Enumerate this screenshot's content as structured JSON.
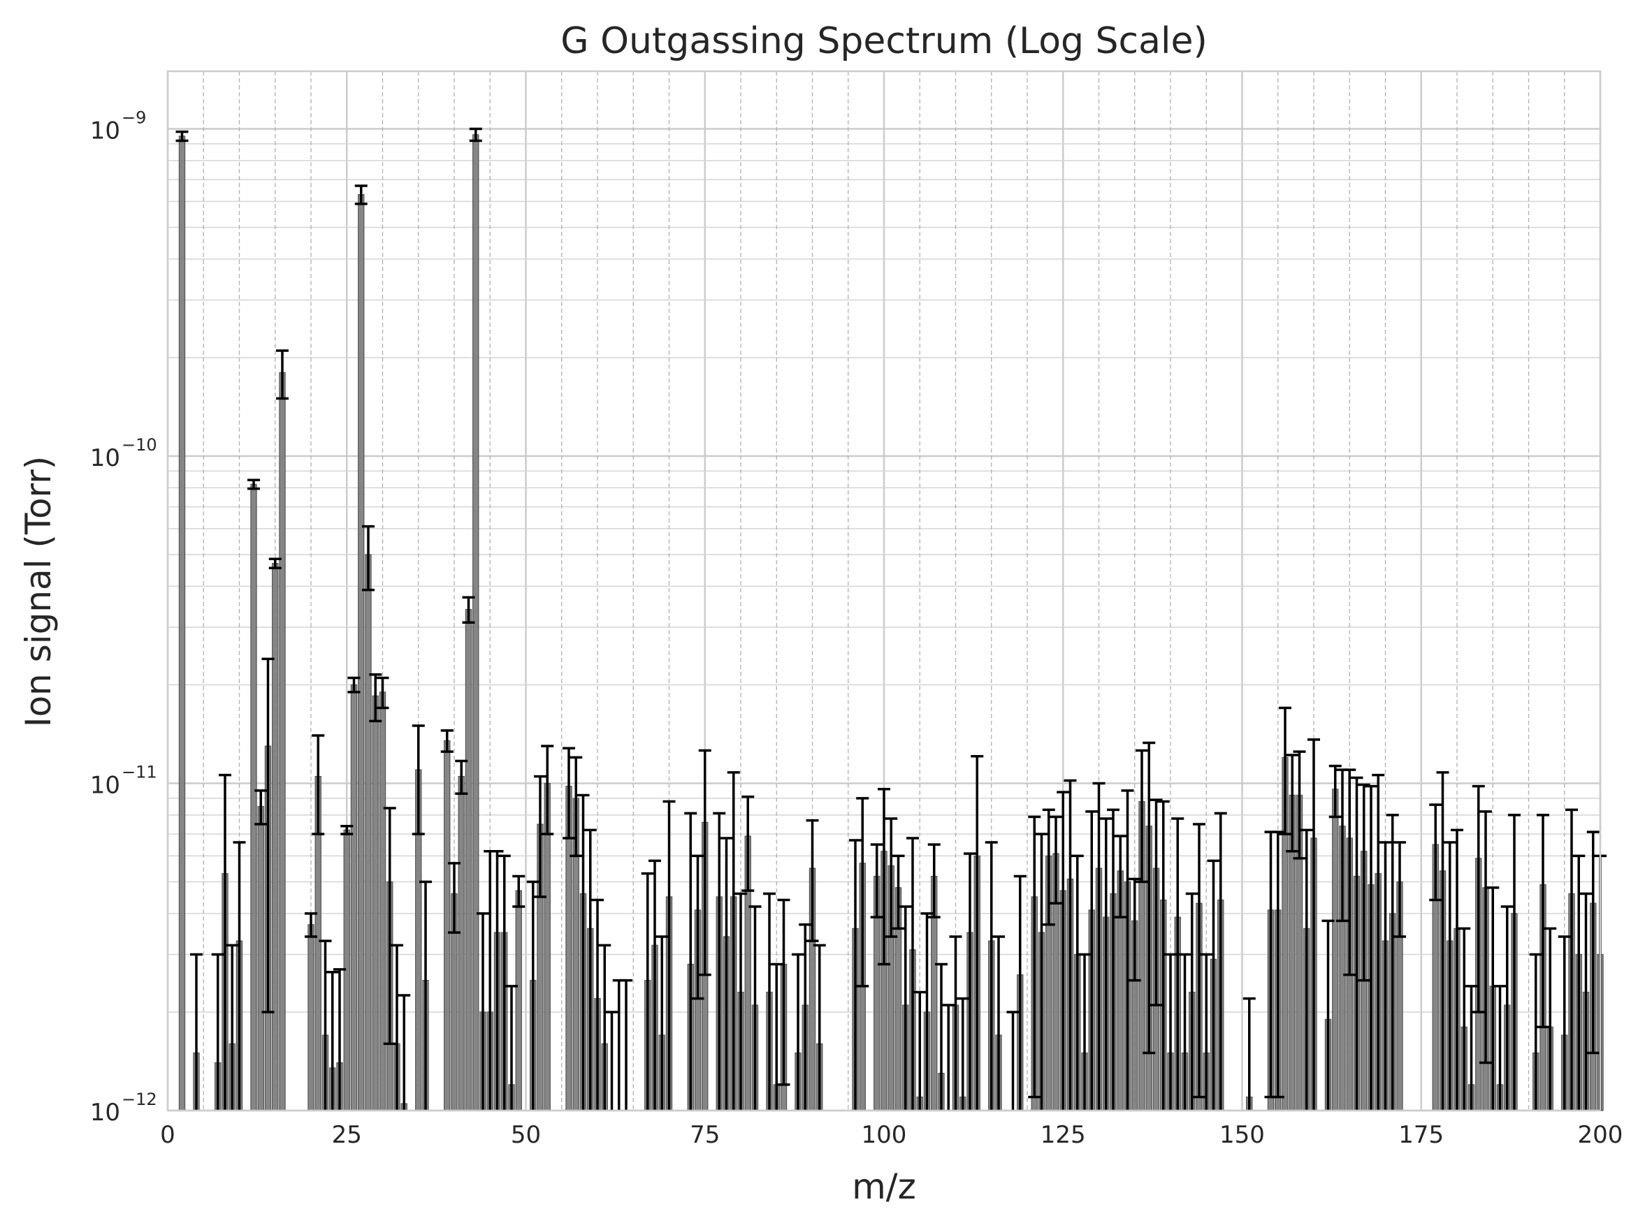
{
  "chart_data": {
    "type": "bar",
    "title": "G Outgassing Spectrum (Log Scale)",
    "xlabel": "m/z",
    "ylabel": "Ion signal (Torr)",
    "xlim": [
      0,
      200
    ],
    "ylim": [
      1e-12,
      1.5e-09
    ],
    "yscale": "log",
    "grid": true,
    "legend": "none",
    "bar_color": "#808080",
    "error_color": "#000000",
    "x_ticks": [
      "0",
      "25",
      "50",
      "75",
      "100",
      "125",
      "150",
      "175",
      "200"
    ],
    "y_ticks": [
      {
        "base": "10",
        "exp": "−12"
      },
      {
        "base": "10",
        "exp": "−11"
      },
      {
        "base": "10",
        "exp": "−10"
      },
      {
        "base": "10",
        "exp": "−9"
      }
    ],
    "x": [
      2,
      4,
      7,
      8,
      9,
      10,
      12,
      13,
      14,
      15,
      16,
      20,
      21,
      22,
      23,
      24,
      25,
      26,
      27,
      28,
      29,
      30,
      31,
      32,
      33,
      35,
      36,
      39,
      40,
      41,
      42,
      43,
      44,
      45,
      46,
      47,
      48,
      49,
      51,
      52,
      53,
      56,
      57,
      58,
      59,
      60,
      61,
      62,
      63,
      64,
      67,
      68,
      69,
      70,
      73,
      74,
      75,
      77,
      78,
      79,
      80,
      81,
      82,
      84,
      85,
      86,
      88,
      89,
      90,
      91,
      96,
      97,
      99,
      100,
      101,
      102,
      103,
      104,
      105,
      106,
      107,
      108,
      109,
      110,
      111,
      112,
      113,
      115,
      116,
      118,
      119,
      121,
      122,
      123,
      124,
      125,
      126,
      127,
      128,
      129,
      130,
      131,
      132,
      133,
      134,
      135,
      136,
      137,
      138,
      139,
      140,
      141,
      142,
      143,
      144,
      145,
      146,
      147,
      151,
      154,
      155,
      156,
      157,
      158,
      159,
      160,
      162,
      163,
      164,
      165,
      166,
      167,
      168,
      169,
      170,
      171,
      172,
      177,
      178,
      179,
      180,
      181,
      182,
      183,
      184,
      185,
      186,
      187,
      188,
      191,
      192,
      193,
      195,
      196,
      197,
      198,
      199,
      200
    ],
    "values": [
      9.5e-10,
      1.5e-12,
      1.4e-12,
      5.3e-12,
      1.6e-12,
      3.3e-12,
      8.2e-11,
      8.5e-12,
      1.3e-11,
      4.7e-11,
      1.8e-10,
      3.7e-12,
      1.05e-11,
      1.7e-12,
      1.35e-12,
      1.4e-12,
      7.2e-12,
      2e-11,
      6.3e-10,
      5e-11,
      1.85e-11,
      1.9e-11,
      5e-12,
      1.6e-12,
      1.05e-12,
      1.1e-11,
      2.5e-12,
      1.35e-11,
      4.6e-12,
      1.05e-11,
      3.4e-11,
      9.6e-10,
      2e-12,
      2e-12,
      3.5e-12,
      3.5e-12,
      1.2e-12,
      4.7e-12,
      2.5e-12,
      7.5e-12,
      1e-11,
      9.8e-12,
      9e-12,
      4.6e-12,
      3.6e-12,
      2.2e-12,
      1.6e-12,
      1e-12,
      1e-12,
      1e-12,
      2.5e-12,
      3.2e-12,
      1.7e-12,
      4.5e-12,
      2.8e-12,
      4.1e-12,
      7.6e-12,
      4.5e-12,
      3.4e-12,
      4.5e-12,
      2.3e-12,
      6.9e-12,
      2.1e-12,
      2.3e-12,
      1.2e-12,
      2.8e-12,
      1.5e-12,
      2.1e-12,
      5.5e-12,
      1.6e-12,
      3.6e-12,
      5.7e-12,
      5.2e-12,
      6.2e-12,
      5.6e-12,
      4.8e-12,
      2.1e-12,
      3.1e-12,
      1.1e-12,
      2e-12,
      5.2e-12,
      1.3e-12,
      1e-12,
      2.1e-12,
      1.1e-12,
      3.5e-12,
      6e-12,
      3.3e-12,
      1.7e-12,
      1e-12,
      2.6e-12,
      4.5e-12,
      3.5e-12,
      6e-12,
      6.1e-12,
      4.7e-12,
      5.1e-12,
      3e-12,
      1.5e-12,
      4.1e-12,
      5.5e-12,
      3.9e-12,
      4.6e-12,
      5.4e-12,
      5e-12,
      3.8e-12,
      8.8e-12,
      7.4e-12,
      5.5e-12,
      4.4e-12,
      1.5e-12,
      3.9e-12,
      1.5e-12,
      2.3e-12,
      4.3e-12,
      1.5e-12,
      2.9e-12,
      4.4e-12,
      1.1e-12,
      4.1e-12,
      4.1e-12,
      1.2e-11,
      9.2e-12,
      9.2e-12,
      3.6e-12,
      6.8e-12,
      1.9e-12,
      9.6e-12,
      7.4e-12,
      6.8e-12,
      5.2e-12,
      6.2e-12,
      4.9e-12,
      5.3e-12,
      3.3e-12,
      4e-12,
      5e-12,
      6.5e-12,
      5.4e-12,
      3.3e-12,
      3.6e-12,
      1.8e-12,
      1.2e-12,
      5.9e-12,
      4.8e-12,
      2.4e-12,
      1.2e-12,
      2.1e-12,
      4e-12,
      1.5e-12,
      4.9e-12,
      1.8e-12,
      1.7e-12,
      4.6e-12,
      3e-12,
      2.3e-12,
      4.3e-12,
      3e-12
    ],
    "errors": [
      3e-11,
      1.5e-12,
      1.6e-12,
      5.3e-12,
      1.6e-12,
      3.3e-12,
      2.5e-12,
      1e-12,
      1.1e-11,
      1.5e-12,
      3e-11,
      3e-13,
      3.5e-12,
      1.6e-12,
      1.3e-12,
      1.3e-12,
      2e-13,
      1e-12,
      4e-11,
      1.1e-11,
      3e-12,
      2e-12,
      3.4e-12,
      1.6e-12,
      1.2e-12,
      4e-12,
      2.5e-12,
      1e-12,
      1.1e-12,
      1.2e-12,
      3e-12,
      4e-11,
      2e-12,
      4.2e-12,
      2.7e-12,
      2.5e-12,
      1.2e-12,
      5e-13,
      2.5e-12,
      3e-12,
      3e-12,
      3e-12,
      3e-12,
      4.6e-12,
      3.6e-12,
      2.2e-12,
      1.6e-12,
      1e-12,
      1.5e-12,
      1.5e-12,
      2.8e-12,
      2.6e-12,
      1.7e-12,
      4.3e-12,
      5.3e-12,
      1.9e-12,
      5e-12,
      3.6e-12,
      3.4e-12,
      6.3e-12,
      2.3e-12,
      2.2e-12,
      2.1e-12,
      2.3e-12,
      1.6e-12,
      1.6e-12,
      1.5e-12,
      1.6e-12,
      2.2e-12,
      1.6e-12,
      3.1e-12,
      3.3e-12,
      1.3e-12,
      3.4e-12,
      2.2e-12,
      1.2e-12,
      2.1e-12,
      3.7e-12,
      1.2e-12,
      2e-12,
      1.3e-12,
      1.5e-12,
      1.1e-12,
      1.3e-12,
      1.1e-12,
      2.6e-12,
      6.1e-12,
      3.3e-12,
      1.7e-12,
      1e-12,
      2.6e-12,
      3.4e-12,
      3.5e-12,
      2.3e-12,
      1.8e-12,
      4.7e-12,
      5.1e-12,
      3e-12,
      1.5e-12,
      4.1e-12,
      4.5e-12,
      3.9e-12,
      3.7e-12,
      1.5e-12,
      4.5e-12,
      1.3e-12,
      3.8e-12,
      5.9e-12,
      3.4e-12,
      4.4e-12,
      1.5e-12,
      3.9e-12,
      1.5e-12,
      2.3e-12,
      3.2e-12,
      1.5e-12,
      2.9e-12,
      3.7e-12,
      1.1e-12,
      3e-12,
      3e-12,
      5e-12,
      3e-12,
      3.3e-12,
      3.6e-12,
      6.8e-12,
      1.9e-12,
      1.7e-12,
      3.6e-12,
      4.2e-12,
      5.2e-12,
      3.7e-12,
      4.9e-12,
      5.3e-12,
      3.3e-12,
      4e-12,
      1.6e-12,
      2.1e-12,
      5.4e-12,
      3.3e-12,
      3.6e-12,
      1.8e-12,
      1.2e-12,
      3.9e-12,
      3.4e-12,
      2.4e-12,
      1.2e-12,
      2.1e-12,
      4e-12,
      1.5e-12,
      3.1e-12,
      1.8e-12,
      1.7e-12,
      3.7e-12,
      3e-12,
      2.3e-12,
      2.8e-12,
      3e-12
    ]
  }
}
